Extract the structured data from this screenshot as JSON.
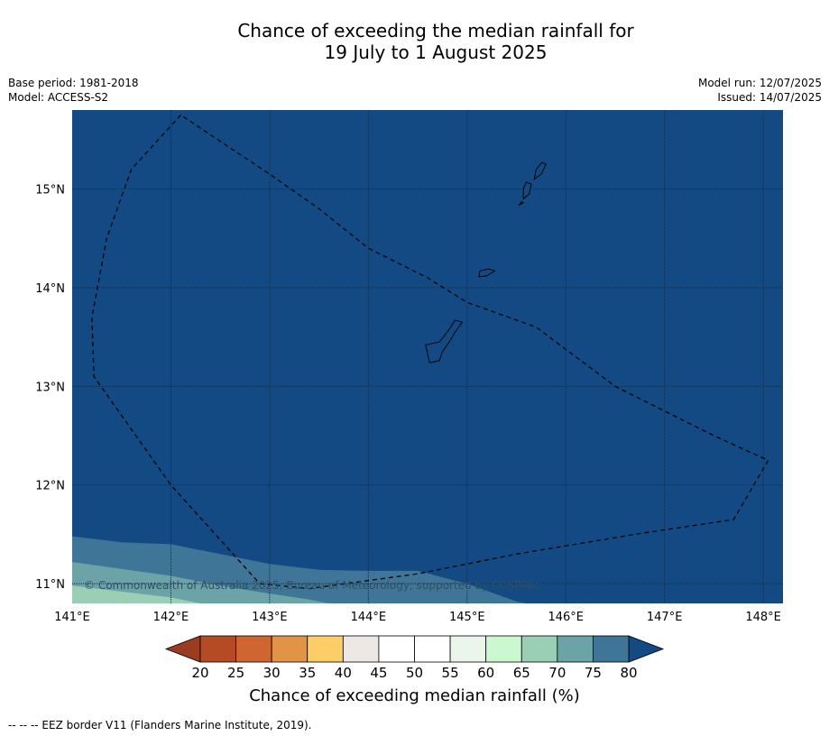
{
  "title": {
    "line1": "Chance of exceeding the median rainfall for",
    "line2": "19 July to 1 August 2025"
  },
  "meta_left": {
    "base_period": "Base period: 1981-2018",
    "model": "Model: ACCESS-S2"
  },
  "meta_right": {
    "model_run": "Model run: 12/07/2025",
    "issued": "Issued: 14/07/2025"
  },
  "map": {
    "lon_range": [
      141.0,
      148.2
    ],
    "lat_range": [
      10.8,
      15.8
    ],
    "lon_ticks": [
      141,
      142,
      143,
      144,
      145,
      146,
      147,
      148
    ],
    "lon_tick_labels": [
      "141°E",
      "142°E",
      "143°E",
      "144°E",
      "145°E",
      "146°E",
      "147°E",
      "148°E"
    ],
    "lat_ticks": [
      11,
      12,
      13,
      14,
      15
    ],
    "lat_tick_labels": [
      "11°N",
      "12°N",
      "13°N",
      "14°N",
      "15°N"
    ],
    "background_category": "above 80%",
    "copyright": "© Commonwealth of Australia 2025, Bureau of Meteorology, supported by COSPPac",
    "eez_border": [
      [
        142.1,
        15.75
      ],
      [
        141.6,
        15.2
      ],
      [
        141.35,
        14.5
      ],
      [
        141.2,
        13.7
      ],
      [
        141.22,
        13.1
      ],
      [
        142.0,
        12.0
      ],
      [
        142.9,
        11.0
      ],
      [
        143.4,
        10.95
      ],
      [
        144.5,
        11.1
      ],
      [
        145.5,
        11.3
      ],
      [
        146.7,
        11.5
      ],
      [
        147.7,
        11.65
      ],
      [
        148.05,
        12.25
      ],
      [
        147.5,
        12.5
      ],
      [
        146.5,
        13.0
      ],
      [
        145.7,
        13.6
      ],
      [
        145.0,
        13.85
      ],
      [
        144.6,
        14.1
      ],
      [
        144.0,
        14.4
      ],
      [
        143.5,
        14.8
      ],
      [
        143.0,
        15.15
      ],
      [
        142.1,
        15.75
      ]
    ],
    "islands": [
      {
        "name": "Guam",
        "outline": [
          [
            144.62,
            13.24
          ],
          [
            144.72,
            13.26
          ],
          [
            144.75,
            13.35
          ],
          [
            144.82,
            13.45
          ],
          [
            144.88,
            13.55
          ],
          [
            144.95,
            13.65
          ],
          [
            144.88,
            13.67
          ],
          [
            144.8,
            13.55
          ],
          [
            144.72,
            13.45
          ],
          [
            144.58,
            13.42
          ],
          [
            144.6,
            13.33
          ],
          [
            144.62,
            13.24
          ]
        ]
      },
      {
        "name": "Rota",
        "outline": [
          [
            145.12,
            14.11
          ],
          [
            145.2,
            14.12
          ],
          [
            145.28,
            14.17
          ],
          [
            145.22,
            14.19
          ],
          [
            145.13,
            14.17
          ],
          [
            145.12,
            14.11
          ]
        ]
      },
      {
        "name": "Tinian",
        "outline": [
          [
            145.57,
            14.9
          ],
          [
            145.63,
            14.95
          ],
          [
            145.65,
            15.05
          ],
          [
            145.6,
            15.07
          ],
          [
            145.57,
            15.0
          ],
          [
            145.57,
            14.9
          ]
        ]
      },
      {
        "name": "Saipan",
        "outline": [
          [
            145.68,
            15.1
          ],
          [
            145.75,
            15.15
          ],
          [
            145.8,
            15.25
          ],
          [
            145.76,
            15.27
          ],
          [
            145.7,
            15.2
          ],
          [
            145.68,
            15.1
          ]
        ]
      },
      {
        "name": "Aguijan",
        "outline": [
          [
            145.53,
            14.84
          ],
          [
            145.57,
            14.86
          ],
          [
            145.55,
            14.87
          ],
          [
            145.53,
            14.84
          ]
        ]
      }
    ],
    "low_region_boundaries": [
      {
        "category": "75-80%",
        "color": "#3F7596",
        "edge": [
          [
            141.0,
            11.48
          ],
          [
            141.5,
            11.42
          ],
          [
            142.0,
            11.4
          ],
          [
            142.5,
            11.3
          ],
          [
            143.0,
            11.2
          ],
          [
            143.5,
            11.14
          ],
          [
            144.0,
            11.13
          ],
          [
            144.5,
            11.13
          ],
          [
            145.0,
            11.0
          ],
          [
            145.5,
            10.82
          ],
          [
            145.6,
            10.8
          ]
        ]
      },
      {
        "category": "70-75%",
        "color": "#6BA3A7",
        "edge": [
          [
            141.0,
            11.22
          ],
          [
            141.5,
            11.15
          ],
          [
            142.0,
            11.08
          ],
          [
            142.5,
            10.98
          ],
          [
            143.0,
            10.9
          ],
          [
            143.4,
            10.84
          ],
          [
            143.6,
            10.8
          ]
        ]
      },
      {
        "category": "65-70%",
        "color": "#9BCFB5",
        "edge": [
          [
            141.0,
            10.98
          ],
          [
            141.5,
            10.92
          ],
          [
            142.0,
            10.86
          ],
          [
            142.3,
            10.8
          ]
        ]
      }
    ]
  },
  "colorbar": {
    "title": "Chance of exceeding median rainfall (%)",
    "tick_labels": [
      "20",
      "25",
      "30",
      "35",
      "40",
      "45",
      "50",
      "55",
      "60",
      "65",
      "70",
      "75",
      "80"
    ],
    "under_color": "#9B3B20",
    "over_color": "#134A84",
    "colors": [
      "#B44B24",
      "#CF6531",
      "#E29446",
      "#FDCE68",
      "#EEE8E4",
      "#FFFFFF",
      "#FFFFFF",
      "#EAF6EA",
      "#CAF9CF",
      "#9BCFB5",
      "#6BA3A7",
      "#3F7596"
    ]
  },
  "footnote": "--  --  -- EEZ border V11 (Flanders Marine Institute, 2019)."
}
